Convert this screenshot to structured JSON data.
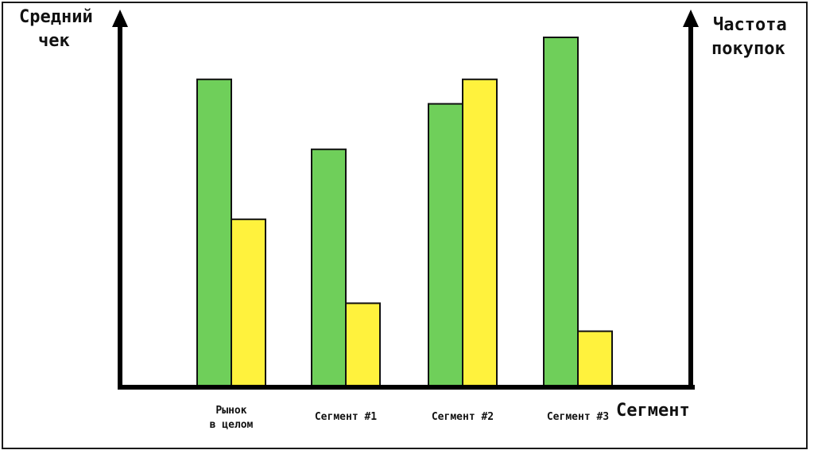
{
  "chart_data": {
    "type": "bar",
    "title": "",
    "ylabel_left": [
      "Средний",
      "чек"
    ],
    "ylabel_right": [
      "Частота",
      "покупок"
    ],
    "xlabel": "Сегмент",
    "categories": [
      [
        "Рынок",
        "в целом"
      ],
      [
        "Сегмент #1"
      ],
      [
        "Сегмент #2"
      ],
      [
        "Сегмент #3"
      ]
    ],
    "ylim": [
      0,
      100
    ],
    "grid": false,
    "legend": "none",
    "series": [
      {
        "color": "#6fcf5a",
        "axis": "left",
        "values": [
          88,
          68,
          81,
          100
        ]
      },
      {
        "color": "#fff23d",
        "axis": "right",
        "values": [
          48,
          24,
          88,
          16
        ]
      }
    ]
  }
}
